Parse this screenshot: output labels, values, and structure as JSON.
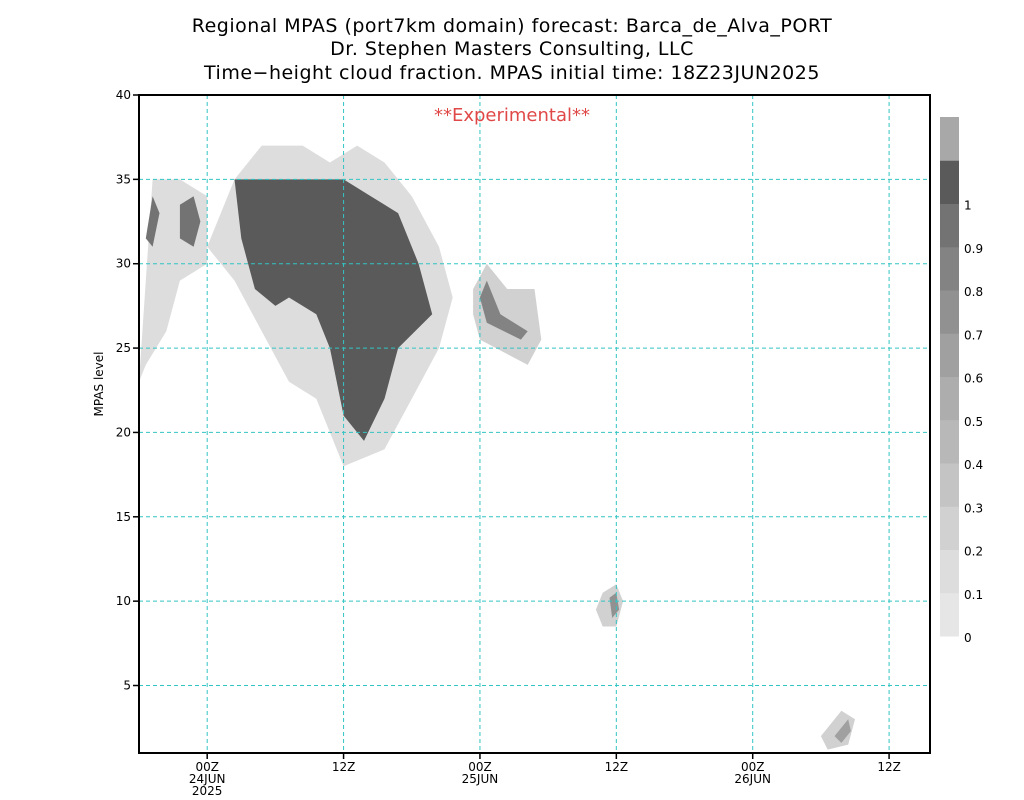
{
  "chart_data": {
    "type": "heatmap",
    "title_lines": [
      "Regional MPAS (port7km domain) forecast: Barca_de_Alva_PORT",
      "Dr. Stephen Masters Consulting, LLC",
      "Time−height cloud fraction.   MPAS initial time: 18Z23JUN2025"
    ],
    "annotation": "**Experimental**",
    "annotation_color": "#e04848",
    "ylabel": "MPAS level",
    "ylim": [
      1,
      40
    ],
    "y_ticks": [
      5,
      10,
      15,
      20,
      25,
      30,
      35,
      40
    ],
    "x_range_hours": [
      -5,
      53
    ],
    "x_ticks": [
      {
        "hour": 0,
        "lines": [
          "00Z",
          "24JUN",
          "2025"
        ]
      },
      {
        "hour": 10,
        "lines": [
          "12Z"
        ]
      },
      {
        "hour": 20,
        "lines": [
          "00Z",
          "25JUN"
        ]
      },
      {
        "hour": 30,
        "lines": [
          "12Z"
        ]
      },
      {
        "hour": 40,
        "lines": [
          "00Z",
          "26JUN"
        ]
      },
      {
        "hour": 50,
        "lines": [
          "12Z"
        ]
      }
    ],
    "grid": true,
    "grid_color": "#33c4c4",
    "colorbar": {
      "labels": [
        "0",
        "0.1",
        "0.2",
        "0.3",
        "0.4",
        "0.5",
        "0.6",
        "0.7",
        "0.8",
        "0.9",
        "1"
      ],
      "colors": [
        "#e6e6e6",
        "#dddddd",
        "#d1d1d1",
        "#c4c4c4",
        "#b8b8b8",
        "#adadad",
        "#a0a0a0",
        "#919191",
        "#838383",
        "#737373",
        "#5a5a5a",
        "#a8a8a8"
      ]
    },
    "cloud_regions": [
      {
        "name": "cloud-region-main-light",
        "level": 0.05,
        "points": [
          [
            2,
            35
          ],
          [
            4,
            37
          ],
          [
            7,
            37
          ],
          [
            9,
            36
          ],
          [
            11,
            37
          ],
          [
            13,
            36
          ],
          [
            15,
            34
          ],
          [
            17,
            31
          ],
          [
            18,
            28
          ],
          [
            17,
            25
          ],
          [
            15,
            22
          ],
          [
            13,
            19
          ],
          [
            10,
            18
          ],
          [
            9,
            20
          ],
          [
            8,
            22
          ],
          [
            6,
            23
          ],
          [
            4,
            26
          ],
          [
            2,
            29
          ],
          [
            0,
            31
          ]
        ]
      },
      {
        "name": "cloud-region-main-dense",
        "level": 0.95,
        "points": [
          [
            2,
            35
          ],
          [
            4,
            35
          ],
          [
            6,
            35
          ],
          [
            8,
            35
          ],
          [
            10,
            35
          ],
          [
            12,
            34
          ],
          [
            14,
            33
          ],
          [
            15.5,
            30
          ],
          [
            16.5,
            27
          ],
          [
            14,
            25
          ],
          [
            13,
            22
          ],
          [
            11.5,
            19.5
          ],
          [
            10,
            21
          ],
          [
            9,
            25
          ],
          [
            8,
            27
          ],
          [
            6,
            28
          ],
          [
            5,
            27.5
          ],
          [
            3.5,
            28.5
          ],
          [
            2.5,
            31.5
          ]
        ]
      },
      {
        "name": "cloud-region-west-light",
        "level": 0.1,
        "points": [
          [
            -5,
            23
          ],
          [
            -4,
            35
          ],
          [
            -2,
            35
          ],
          [
            0,
            34
          ],
          [
            0,
            30
          ],
          [
            -2,
            29
          ],
          [
            -3,
            26
          ],
          [
            -4.5,
            24
          ]
        ]
      },
      {
        "name": "cloud-region-west-dense",
        "level": 0.9,
        "points": [
          [
            -4.5,
            31.5
          ],
          [
            -4,
            34
          ],
          [
            -3.5,
            33
          ],
          [
            -4,
            31
          ]
        ]
      },
      {
        "name": "cloud-region-west2-dense",
        "level": 0.9,
        "points": [
          [
            -2,
            33.5
          ],
          [
            -1,
            34
          ],
          [
            -0.5,
            32.5
          ],
          [
            -1,
            31
          ],
          [
            -2,
            31.5
          ]
        ]
      },
      {
        "name": "cloud-region-east-light",
        "level": 0.2,
        "points": [
          [
            19.5,
            28.5
          ],
          [
            20.5,
            30
          ],
          [
            22,
            28.5
          ],
          [
            24,
            28.5
          ],
          [
            24.5,
            25.5
          ],
          [
            23.5,
            24
          ],
          [
            20,
            25.5
          ],
          [
            19.5,
            27
          ]
        ]
      },
      {
        "name": "cloud-region-east-dense",
        "level": 0.8,
        "points": [
          [
            20,
            28
          ],
          [
            20.5,
            29
          ],
          [
            21.5,
            27
          ],
          [
            23.5,
            26
          ],
          [
            23,
            25.5
          ],
          [
            20.5,
            26.5
          ]
        ]
      },
      {
        "name": "cloud-region-low-light",
        "level": 0.2,
        "points": [
          [
            29,
            10.5
          ],
          [
            30,
            11
          ],
          [
            30.5,
            10
          ],
          [
            30,
            8.5
          ],
          [
            29,
            8.5
          ],
          [
            28.5,
            9.5
          ]
        ]
      },
      {
        "name": "cloud-region-low-dense",
        "level": 0.7,
        "points": [
          [
            29.5,
            10.2
          ],
          [
            30,
            10.5
          ],
          [
            30.2,
            9.5
          ],
          [
            29.7,
            9
          ]
        ]
      },
      {
        "name": "cloud-region-surface-light",
        "level": 0.2,
        "points": [
          [
            45,
            2
          ],
          [
            46.5,
            3.5
          ],
          [
            47.5,
            3
          ],
          [
            47,
            1.5
          ],
          [
            45.5,
            1.2
          ]
        ]
      },
      {
        "name": "cloud-region-surface-dense",
        "level": 0.6,
        "points": [
          [
            46,
            2
          ],
          [
            47,
            3
          ],
          [
            47.2,
            2.3
          ],
          [
            46.5,
            1.6
          ]
        ]
      }
    ]
  }
}
